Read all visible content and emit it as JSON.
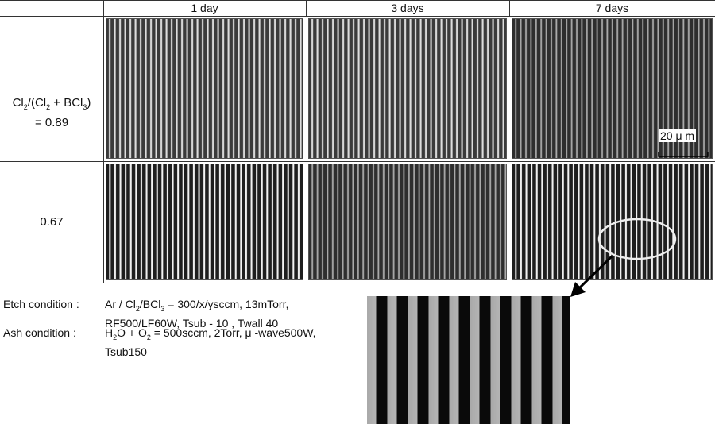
{
  "columns": [
    "1 day",
    "3 days",
    "7 days"
  ],
  "rows": [
    {
      "label": [
        "Cl",
        "2",
        "/(Cl",
        "2",
        " + BCl",
        "3",
        ")"
      ],
      "value": "= 0.89"
    },
    {
      "label": [
        "0.67"
      ]
    }
  ],
  "scale_bar": "20 μ m",
  "etch": {
    "heading": "Etch condition :",
    "lines": [
      [
        "Ar / Cl",
        "2",
        "/BCl",
        "3",
        " = 300/x/ysccm, 13mTorr,"
      ],
      [
        "RF500/LF60W, Tsub  - 10   , Twall 40"
      ]
    ]
  },
  "ash": {
    "heading": "Ash condition :",
    "lines": [
      [
        "H",
        "2",
        "O + O",
        "2",
        " = 500sccm, 2Torr, μ -wave500W,"
      ],
      [
        "Tsub150"
      ]
    ]
  }
}
